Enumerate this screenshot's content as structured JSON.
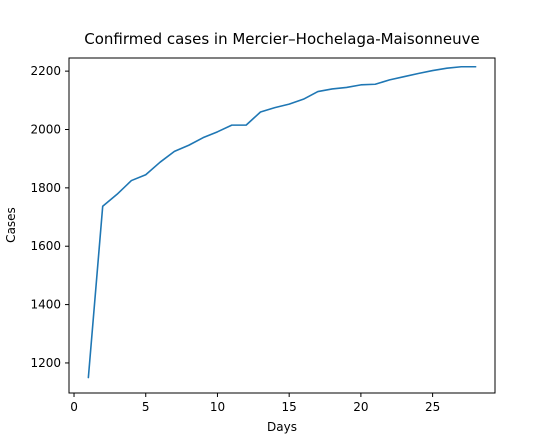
{
  "chart_data": {
    "type": "line",
    "title": "Confirmed cases in Mercier–Hochelaga-Maisonneuve",
    "xlabel": "Days",
    "ylabel": "Cases",
    "xlim": [
      -0.35,
      29.35
    ],
    "ylim": [
      1097,
      2245
    ],
    "xticks": [
      0,
      5,
      10,
      15,
      20,
      25
    ],
    "yticks": [
      1200,
      1400,
      1600,
      1800,
      2000,
      2200
    ],
    "grid": false,
    "legend": "none",
    "line_color": "#1f77b4",
    "series": [
      {
        "x": [
          1,
          2,
          3,
          4,
          5,
          6,
          7,
          8,
          9,
          10,
          11,
          12,
          13,
          14,
          15,
          16,
          17,
          18,
          19,
          20,
          21,
          22,
          23,
          24,
          25,
          26,
          27,
          28
        ],
        "values": [
          1150,
          1737,
          1778,
          1825,
          1845,
          1888,
          1925,
          1946,
          1972,
          1992,
          2015,
          2015,
          2060,
          2075,
          2087,
          2104,
          2130,
          2139,
          2144,
          2153,
          2155,
          2170,
          2181,
          2192,
          2202,
          2210,
          2215,
          2215
        ]
      }
    ]
  }
}
